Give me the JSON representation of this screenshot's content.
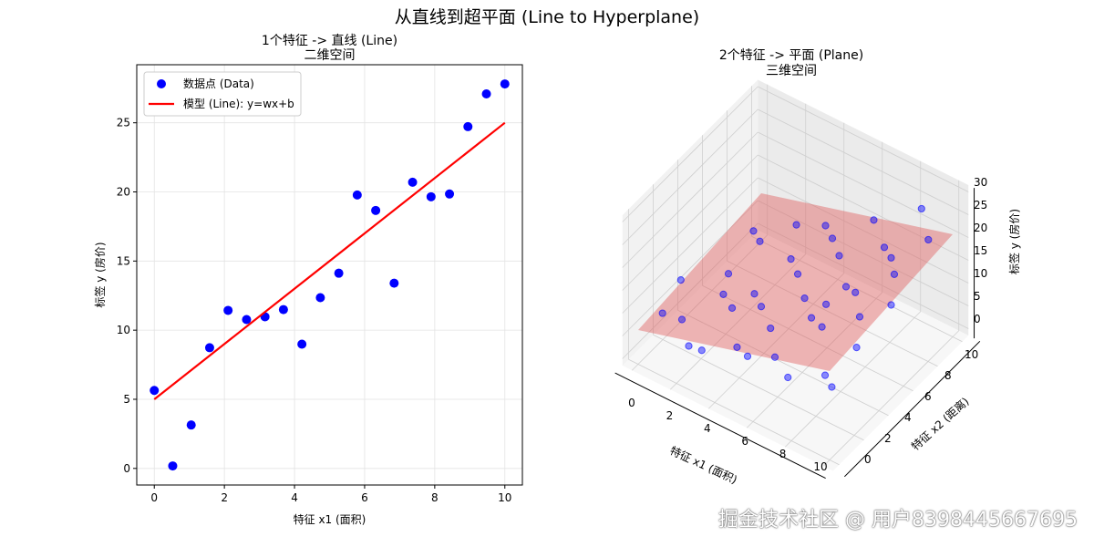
{
  "suptitle": "从直线到超平面 (Line to Hyperplane)",
  "watermark": "掘金技术社区 @ 用户8398445667695",
  "colors": {
    "points": "#0000ff",
    "line": "#ff0000",
    "plane": "#e06060"
  },
  "chart_data": [
    {
      "type": "scatter",
      "title": "1个特征 -> 直线 (Line)",
      "subtitle": "二维空间",
      "xlabel": "特征 x1 (面积)",
      "ylabel": "标签 y (房价)",
      "xlim": [
        -0.5,
        10.5
      ],
      "ylim": [
        -1.2,
        29.2
      ],
      "xticks": [
        0,
        2,
        4,
        6,
        8,
        10
      ],
      "yticks": [
        0,
        5,
        10,
        15,
        20,
        25
      ],
      "grid": true,
      "legend": {
        "placement": "top-left",
        "entries": [
          "数据点 (Data)",
          "模型 (Line): y=wx+b"
        ]
      },
      "x": [
        0,
        0.526,
        1.053,
        1.579,
        2.105,
        2.632,
        3.158,
        3.684,
        4.211,
        4.737,
        5.263,
        5.789,
        6.316,
        6.842,
        7.368,
        7.895,
        8.421,
        8.947,
        9.474,
        10
      ],
      "y": [
        5.64,
        0.18,
        3.14,
        8.73,
        11.43,
        10.77,
        10.97,
        11.49,
        8.99,
        12.35,
        14.12,
        19.78,
        18.66,
        13.4,
        20.7,
        19.65,
        19.85,
        24.72,
        27.09,
        27.81
      ],
      "line": {
        "w": 2,
        "b": 5,
        "x": [
          0,
          10
        ]
      }
    },
    {
      "type": "scatter3d",
      "title": "2个特征 -> 平面 (Plane)",
      "subtitle": "三维空间",
      "xlabel": "特征 x1 (面积)",
      "ylabel": "特征 x2 (距离)",
      "zlabel": "标签 y (房价)",
      "xticks": [
        0,
        2,
        4,
        6,
        8,
        10
      ],
      "yticks": [
        0,
        2,
        4,
        6,
        8,
        10
      ],
      "zticks": [
        0,
        5,
        10,
        15,
        20,
        25,
        30
      ],
      "plane": {
        "w1": 1.2,
        "w2": 0.3,
        "b": 6
      },
      "points": [
        [
          0.5,
          1.2,
          7.5
        ],
        [
          0.3,
          3.0,
          9.5
        ],
        [
          1.0,
          2.0,
          5.0
        ],
        [
          1.5,
          5.0,
          8.0
        ],
        [
          1.2,
          7.5,
          10.0
        ],
        [
          2.0,
          1.0,
          4.0
        ],
        [
          2.2,
          3.5,
          9.0
        ],
        [
          2.5,
          6.0,
          14.5
        ],
        [
          2.8,
          8.5,
          12.0
        ],
        [
          3.0,
          0.5,
          6.5
        ],
        [
          3.3,
          2.5,
          11.0
        ],
        [
          3.5,
          4.0,
          10.5
        ],
        [
          3.8,
          6.5,
          12.0
        ],
        [
          4.0,
          9.0,
          13.0
        ],
        [
          4.2,
          1.5,
          7.0
        ],
        [
          4.5,
          3.0,
          12.5
        ],
        [
          4.8,
          5.5,
          13.5
        ],
        [
          5.0,
          8.0,
          15.0
        ],
        [
          5.2,
          0.8,
          9.0
        ],
        [
          5.5,
          2.2,
          12.0
        ],
        [
          5.8,
          4.5,
          13.0
        ],
        [
          6.0,
          7.0,
          16.0
        ],
        [
          6.2,
          9.5,
          17.5
        ],
        [
          6.5,
          1.0,
          11.0
        ],
        [
          6.8,
          3.5,
          13.5
        ],
        [
          7.0,
          6.0,
          14.0
        ],
        [
          7.2,
          8.8,
          15.5
        ],
        [
          7.5,
          0.5,
          10.0
        ],
        [
          7.8,
          2.8,
          15.5
        ],
        [
          8.0,
          5.2,
          17.0
        ],
        [
          8.2,
          7.8,
          18.0
        ],
        [
          8.5,
          9.8,
          24.0
        ],
        [
          8.8,
          1.5,
          10.5
        ],
        [
          9.0,
          4.0,
          17.0
        ],
        [
          9.2,
          6.5,
          20.0
        ],
        [
          9.5,
          8.8,
          22.0
        ],
        [
          9.8,
          2.5,
          16.0
        ],
        [
          10.0,
          5.0,
          19.0
        ],
        [
          9.6,
          0.8,
          11.5
        ],
        [
          6.6,
          5.0,
          12.0
        ]
      ]
    }
  ]
}
